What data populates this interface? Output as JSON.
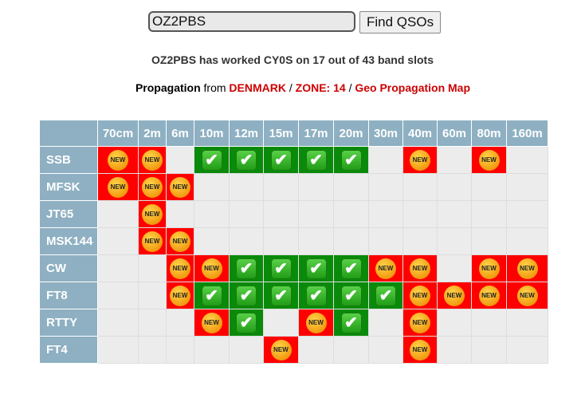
{
  "search": {
    "value": "OZ2PBS",
    "button": "Find QSOs"
  },
  "summary": "OZ2PBS has worked CY0S on 17 out of 43 band slots",
  "propagation": {
    "label": "Propagation",
    "from": "from",
    "country": "DENMARK",
    "sep": "/",
    "zone": "ZONE: 14",
    "map_link": "Geo Propagation Map"
  },
  "colors": {
    "header": "#8eb0c2",
    "new": "#ff0000",
    "worked": "#0a8a0a",
    "empty": "#ececec",
    "link": "#cc0000"
  },
  "badges": {
    "new": "NEW",
    "worked": "✔"
  },
  "bands": [
    "70cm",
    "2m",
    "6m",
    "10m",
    "12m",
    "15m",
    "17m",
    "20m",
    "30m",
    "40m",
    "60m",
    "80m",
    "160m"
  ],
  "rows": [
    {
      "mode": "SSB",
      "cells": [
        "new",
        "new",
        "",
        "ok",
        "ok",
        "ok",
        "ok",
        "ok",
        "",
        "new",
        "",
        "new",
        ""
      ]
    },
    {
      "mode": "MFSK",
      "cells": [
        "new",
        "new",
        "new",
        "",
        "",
        "",
        "",
        "",
        "",
        "",
        "",
        "",
        ""
      ]
    },
    {
      "mode": "JT65",
      "cells": [
        "",
        "new",
        "",
        "",
        "",
        "",
        "",
        "",
        "",
        "",
        "",
        "",
        ""
      ]
    },
    {
      "mode": "MSK144",
      "cells": [
        "",
        "new",
        "new",
        "",
        "",
        "",
        "",
        "",
        "",
        "",
        "",
        "",
        ""
      ]
    },
    {
      "mode": "CW",
      "cells": [
        "",
        "",
        "new",
        "new",
        "ok",
        "ok",
        "ok",
        "ok",
        "new",
        "new",
        "",
        "new",
        "new"
      ]
    },
    {
      "mode": "FT8",
      "cells": [
        "",
        "",
        "new",
        "ok",
        "ok",
        "ok",
        "ok",
        "ok",
        "ok",
        "new",
        "new",
        "new",
        "new"
      ]
    },
    {
      "mode": "RTTY",
      "cells": [
        "",
        "",
        "",
        "new",
        "ok",
        "",
        "new",
        "ok",
        "",
        "new",
        "",
        "",
        ""
      ]
    },
    {
      "mode": "FT4",
      "cells": [
        "",
        "",
        "",
        "",
        "",
        "new",
        "",
        "",
        "",
        "new",
        "",
        "",
        ""
      ]
    }
  ]
}
